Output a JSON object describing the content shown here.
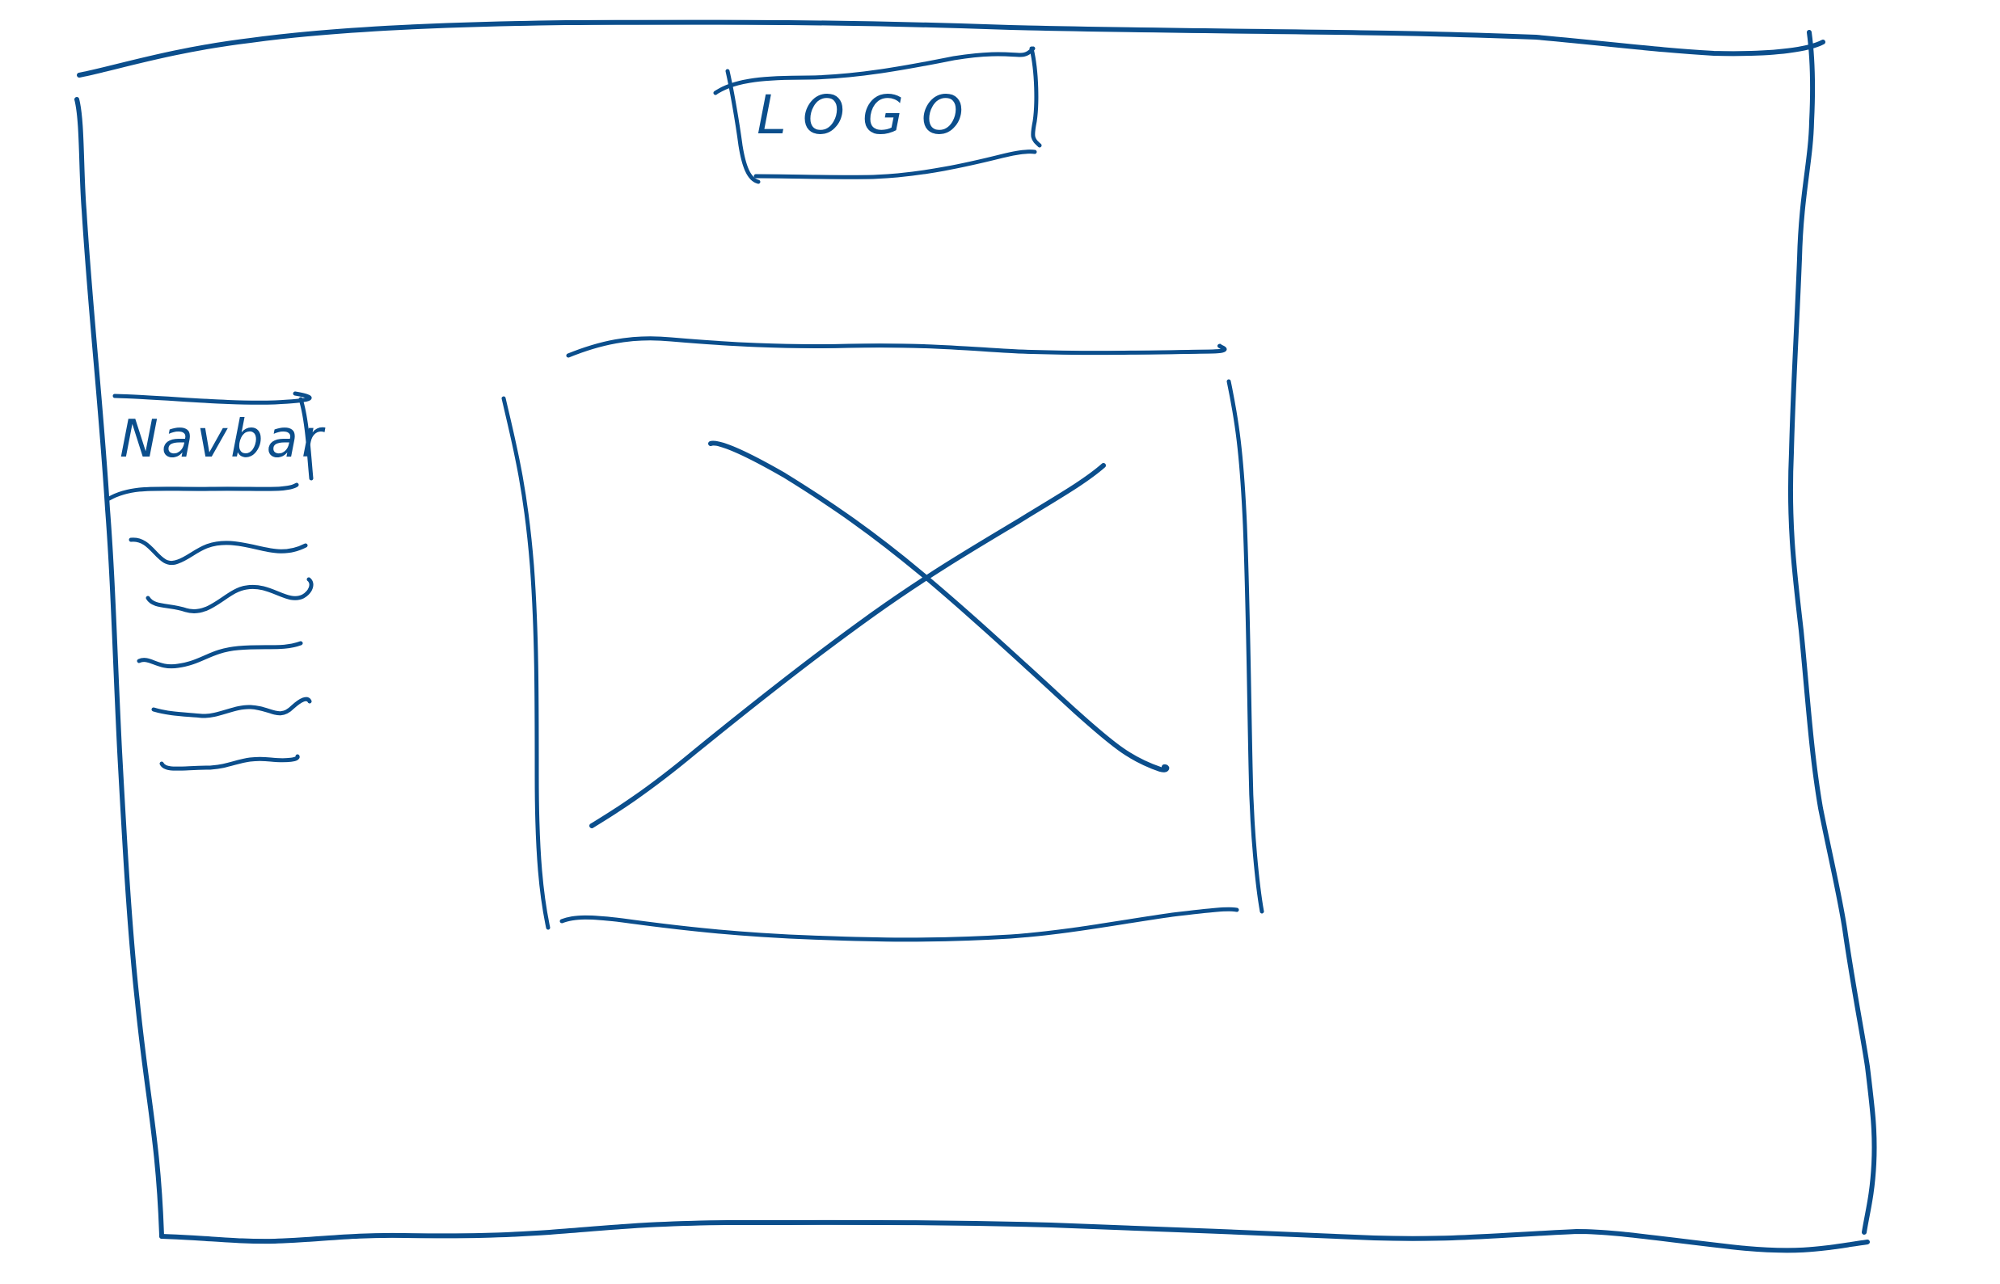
{
  "colors": {
    "ink": "#0b4e8c",
    "background": "#ffffff"
  },
  "header": {
    "logo_text": "LOGO"
  },
  "sidebar": {
    "title": "Navbar",
    "items_count_note": "",
    "items": [
      "",
      "",
      "",
      "",
      ""
    ]
  },
  "main": {
    "image_placeholder_icon": "image-placeholder-x-icon"
  }
}
